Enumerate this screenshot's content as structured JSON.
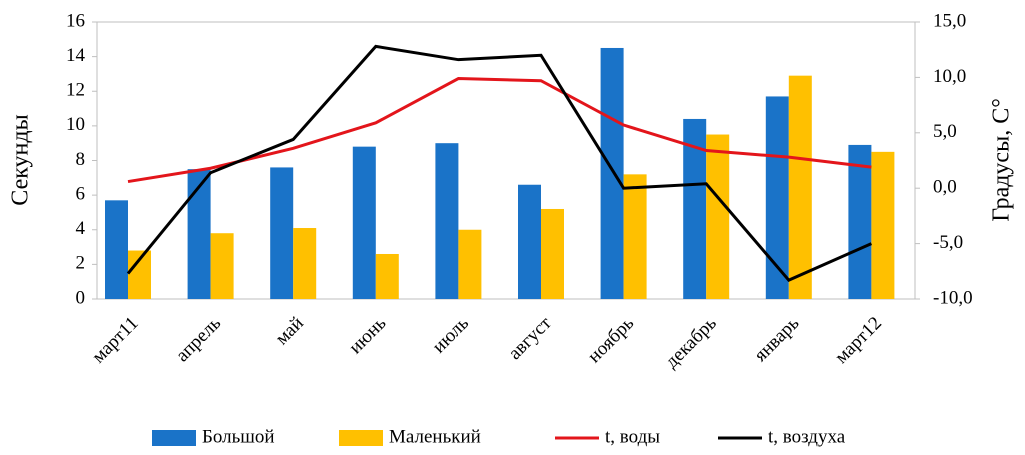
{
  "chart_data": {
    "type": "bar_line",
    "categories": [
      "март11",
      "апрель",
      "май",
      "июнь",
      "июль",
      "август",
      "ноябрь",
      "декабрь",
      "январь",
      "март12"
    ],
    "series": [
      {
        "name": "Большой",
        "type": "bar",
        "color": "#1a73c8",
        "values": [
          5.7,
          7.5,
          7.6,
          8.8,
          9.0,
          6.6,
          14.5,
          10.4,
          11.7,
          8.9
        ]
      },
      {
        "name": "Маленький",
        "type": "bar",
        "color": "#ffc000",
        "values": [
          2.8,
          3.8,
          4.1,
          2.6,
          4.0,
          5.2,
          7.2,
          9.5,
          12.9,
          8.5
        ]
      },
      {
        "name": "t, воды",
        "type": "line",
        "axis": "y2",
        "color": "#e3151b",
        "values": [
          0.6,
          1.8,
          3.6,
          5.9,
          9.9,
          9.7,
          5.7,
          3.4,
          2.8,
          1.9
        ]
      },
      {
        "name": "t, воздуха",
        "type": "line",
        "axis": "y2",
        "color": "#000000",
        "values": [
          -7.7,
          1.4,
          4.4,
          12.8,
          11.6,
          12.0,
          0.0,
          0.4,
          -8.3,
          -5.0
        ]
      }
    ],
    "ylabel": "Секунды",
    "y2label": "Градусы, С°",
    "ylim": [
      0,
      16
    ],
    "yticks": [
      0,
      2,
      4,
      6,
      8,
      10,
      12,
      14,
      16
    ],
    "y2lim": [
      -10,
      15
    ],
    "y2ticks": [
      {
        "value": -10,
        "label": "-10,0"
      },
      {
        "value": -5,
        "label": "-5,0"
      },
      {
        "value": 0,
        "label": "0,0"
      },
      {
        "value": 5,
        "label": "5,0"
      },
      {
        "value": 10,
        "label": "10,0"
      },
      {
        "value": 15,
        "label": "15,0"
      }
    ],
    "legend": "bottom"
  }
}
